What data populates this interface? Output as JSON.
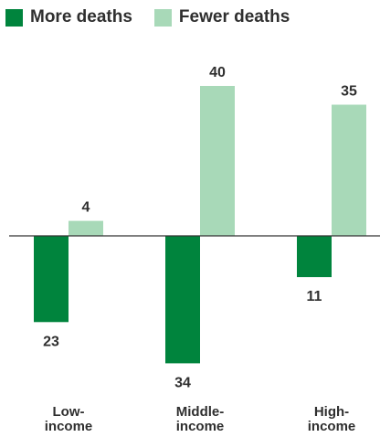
{
  "colors": {
    "more": "#00843d",
    "fewer": "#a8d9b8",
    "axis": "#333333",
    "text": "#2f2f2f"
  },
  "legend": [
    {
      "label": "More deaths",
      "color": "#00843d"
    },
    {
      "label": "Fewer deaths",
      "color": "#a8d9b8"
    }
  ],
  "chart_data": {
    "type": "bar",
    "categories": [
      "Low-\nincome",
      "Middle-\nincome",
      "High-\nincome"
    ],
    "series": [
      {
        "name": "More deaths",
        "values": [
          -23,
          -34,
          -11
        ],
        "labels": [
          "23",
          "34",
          "11"
        ]
      },
      {
        "name": "Fewer deaths",
        "values": [
          4,
          40,
          35
        ],
        "labels": [
          "4",
          "40",
          "35"
        ]
      }
    ],
    "ylim": [
      -35,
      42
    ],
    "legend_position": "top-left",
    "grid": false
  }
}
